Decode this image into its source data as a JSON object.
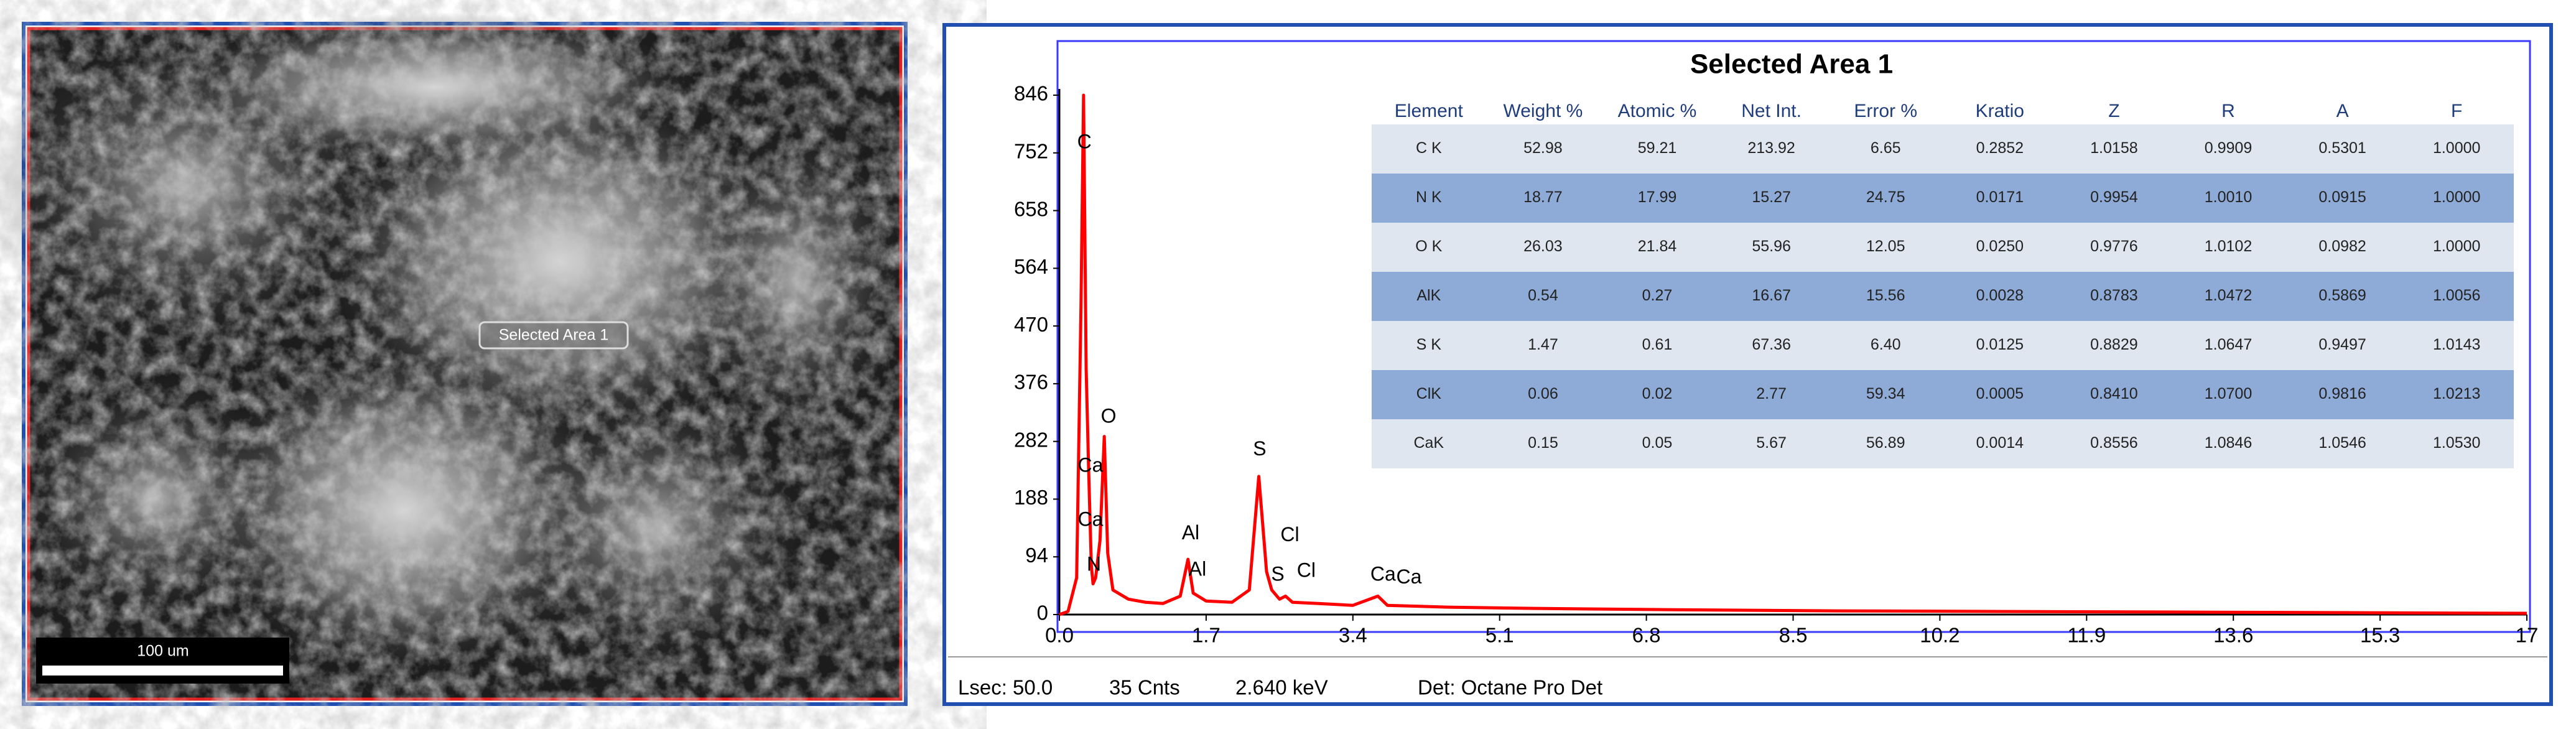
{
  "sem_image": {
    "selection_label": "Selected Area 1",
    "scale_bar": "100 um"
  },
  "chart_data": {
    "type": "line",
    "title": "Selected Area 1",
    "color": "#ff0000",
    "x": [
      0,
      0.1,
      0.2,
      0.25,
      0.28,
      0.31,
      0.34,
      0.37,
      0.39,
      0.42,
      0.47,
      0.52,
      0.56,
      0.62,
      0.8,
      1.0,
      1.2,
      1.4,
      1.49,
      1.55,
      1.7,
      2.0,
      2.2,
      2.31,
      2.4,
      2.46,
      2.55,
      2.62,
      2.7,
      3.0,
      3.4,
      3.69,
      3.8,
      4.5,
      5.5,
      7,
      9,
      11,
      13,
      15,
      17
    ],
    "values": [
      0,
      5,
      60,
      500,
      846,
      400,
      230,
      80,
      50,
      60,
      120,
      290,
      100,
      40,
      25,
      20,
      18,
      30,
      90,
      35,
      22,
      20,
      40,
      225,
      70,
      40,
      25,
      30,
      20,
      18,
      15,
      30,
      15,
      12,
      10,
      8,
      6,
      5,
      4,
      3,
      2
    ],
    "xlim": [
      0,
      17
    ],
    "xticks": [
      {
        "value": 0,
        "label": "0.0"
      },
      1.7,
      3.4,
      5.1,
      6.8,
      8.5,
      10.2,
      11.9,
      13.6,
      15.3,
      17
    ],
    "ylim": [
      0,
      846
    ],
    "yticks": [
      0,
      94,
      188,
      282,
      376,
      470,
      564,
      658,
      752,
      846
    ],
    "annotations": [
      {
        "label": "C",
        "x": 0.29,
        "y": 768
      },
      {
        "label": "O",
        "x": 0.57,
        "y": 321
      },
      {
        "label": "Ca",
        "x": 0.36,
        "y": 241
      },
      {
        "label": "Ca",
        "x": 0.36,
        "y": 153
      },
      {
        "label": "N",
        "x": 0.4,
        "y": 80
      },
      {
        "label": "Al",
        "x": 1.52,
        "y": 131
      },
      {
        "label": "Al",
        "x": 1.6,
        "y": 72
      },
      {
        "label": "S",
        "x": 2.32,
        "y": 268
      },
      {
        "label": "Cl",
        "x": 2.67,
        "y": 128
      },
      {
        "label": "S",
        "x": 2.53,
        "y": 64
      },
      {
        "label": "Cl",
        "x": 2.86,
        "y": 70
      },
      {
        "label": "Ca",
        "x": 3.75,
        "y": 64
      },
      {
        "label": "Ca",
        "x": 4.05,
        "y": 59
      }
    ]
  },
  "table": {
    "header": [
      "Element",
      "Weight %",
      "Atomic %",
      "Net Int.",
      "Error %",
      "Kratio",
      "Z",
      "R",
      "A",
      "F"
    ],
    "rows": [
      [
        "C K",
        "52.98",
        "59.21",
        "213.92",
        "6.65",
        "0.2852",
        "1.0158",
        "0.9909",
        "0.5301",
        "1.0000"
      ],
      [
        "N K",
        "18.77",
        "17.99",
        "15.27",
        "24.75",
        "0.0171",
        "0.9954",
        "1.0010",
        "0.0915",
        "1.0000"
      ],
      [
        "O K",
        "26.03",
        "21.84",
        "55.96",
        "12.05",
        "0.0250",
        "0.9776",
        "1.0102",
        "0.0982",
        "1.0000"
      ],
      [
        "AlK",
        "0.54",
        "0.27",
        "16.67",
        "15.56",
        "0.0028",
        "0.8783",
        "1.0472",
        "0.5869",
        "1.0056"
      ],
      [
        "S K",
        "1.47",
        "0.61",
        "67.36",
        "6.40",
        "0.0125",
        "0.8829",
        "1.0647",
        "0.9497",
        "1.0143"
      ],
      [
        "ClK",
        "0.06",
        "0.02",
        "2.77",
        "59.34",
        "0.0005",
        "0.8410",
        "1.0700",
        "0.9816",
        "1.0213"
      ],
      [
        "CaK",
        "0.15",
        "0.05",
        "5.67",
        "56.89",
        "0.0014",
        "0.8556",
        "1.0846",
        "1.0546",
        "1.0530"
      ]
    ]
  },
  "status_bar": {
    "lsec": "Lsec: 50.0",
    "counts": "35 Cnts",
    "energy": "2.640 keV",
    "detector": "Det: Octane Pro Det"
  }
}
